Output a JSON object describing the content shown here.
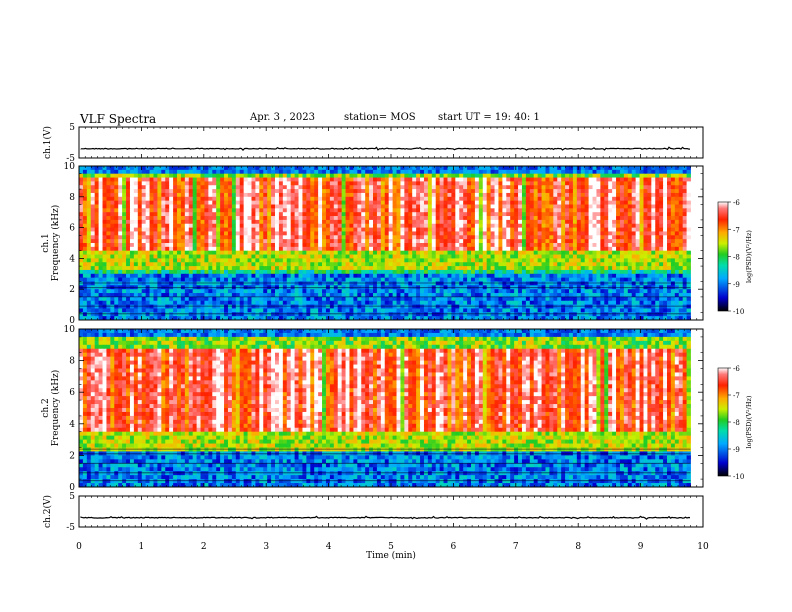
{
  "header": {
    "title": "VLF Spectra",
    "date": "Apr. 3 , 2023",
    "station": "station= MOS",
    "start_ut": "start UT = 19: 40: 1"
  },
  "chart_data": [
    {
      "type": "line",
      "panel": "ch1-waveform",
      "ylabel": "ch.1(V)",
      "ylim": [
        -5,
        5
      ],
      "yticks": [
        "5",
        "-5"
      ],
      "xlim": [
        0,
        10
      ],
      "baseline_value": -2
    },
    {
      "type": "heatmap",
      "panel": "ch1-spectrogram",
      "ylabel_line1": "ch.1",
      "ylabel_line2": "Frequency (kHz)",
      "ylim": [
        0,
        10
      ],
      "yticks": [
        "0",
        "2",
        "4",
        "6",
        "8",
        "10"
      ],
      "xlim": [
        0,
        10
      ],
      "data_end_min": 9.8,
      "colorbar": {
        "label": "log(PSD)(V²/Hz)",
        "range": [
          -10,
          -6
        ],
        "ticks": [
          "-6",
          "-7",
          "-8",
          "-9",
          "-10"
        ]
      },
      "intense_band_khz": [
        4.5,
        9.2
      ]
    },
    {
      "type": "heatmap",
      "panel": "ch2-spectrogram",
      "ylabel_line1": "ch.2",
      "ylabel_line2": "Frequency (kHz)",
      "ylim": [
        0,
        10
      ],
      "yticks": [
        "0",
        "2",
        "4",
        "6",
        "8",
        "10"
      ],
      "xlim": [
        0,
        10
      ],
      "data_end_min": 9.8,
      "colorbar": {
        "label": "log(PSD)(V²/Hz)",
        "range": [
          -10,
          -6
        ],
        "ticks": [
          "-6",
          "-7",
          "-8",
          "-9",
          "-10"
        ]
      },
      "intense_band_khz": [
        3.5,
        8.8
      ]
    },
    {
      "type": "line",
      "panel": "ch2-waveform",
      "ylabel": "ch.2(V)",
      "ylim": [
        -5,
        5
      ],
      "yticks": [
        "5",
        "-5"
      ],
      "xlim": [
        0,
        10
      ],
      "xticks": [
        "0",
        "1",
        "2",
        "3",
        "4",
        "5",
        "6",
        "7",
        "8",
        "9",
        "10"
      ],
      "xlabel": "Time (min)",
      "baseline_value": -2
    }
  ]
}
